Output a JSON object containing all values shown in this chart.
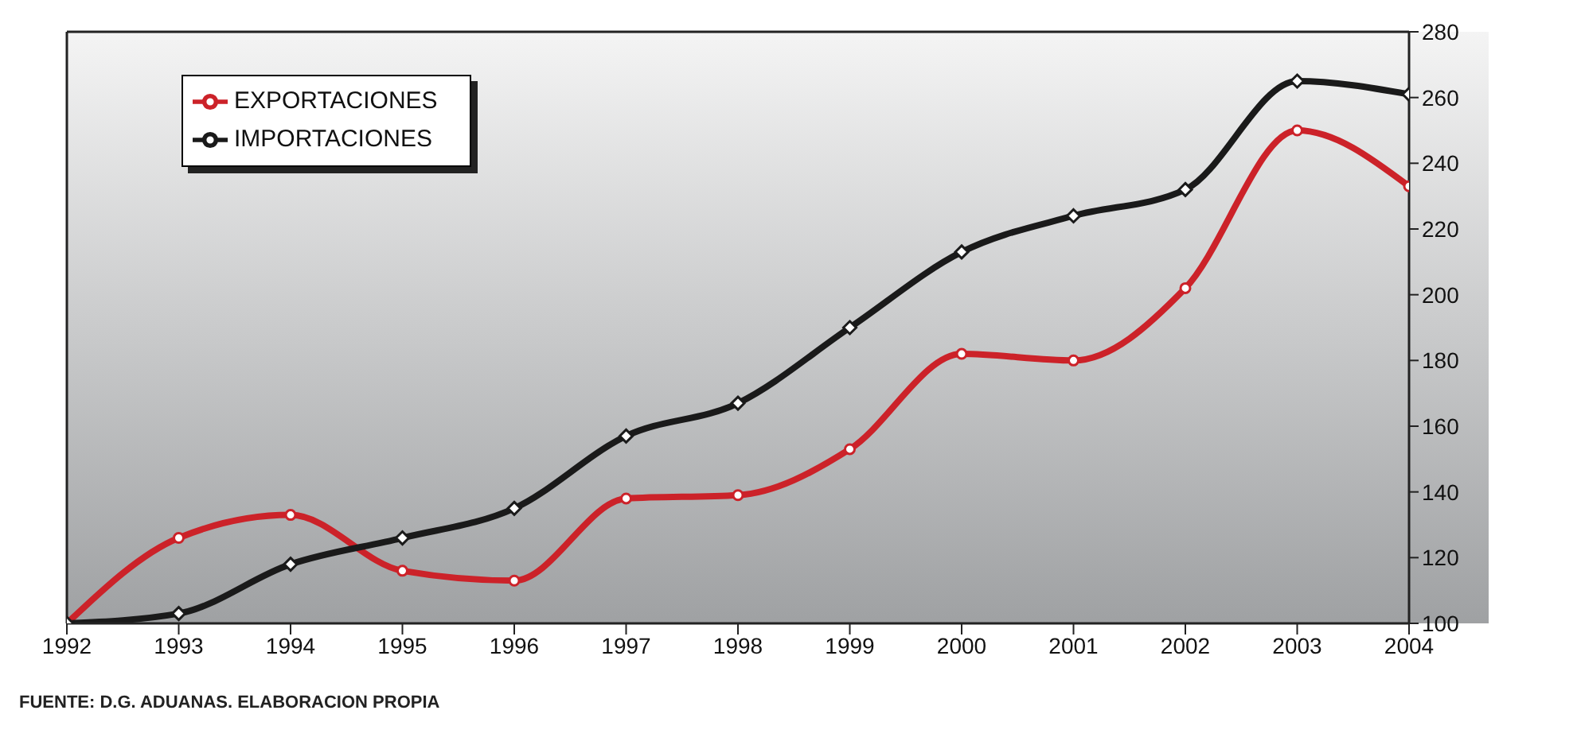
{
  "chart_data": {
    "type": "line",
    "x": [
      1992,
      1993,
      1994,
      1995,
      1996,
      1997,
      1998,
      1999,
      2000,
      2001,
      2002,
      2003,
      2004
    ],
    "series": [
      {
        "name": "EXPORTACIONES",
        "color": "#cc2229",
        "marker": "circle",
        "values": [
          100,
          126,
          133,
          116,
          113,
          138,
          139,
          153,
          182,
          180,
          202,
          250,
          233
        ]
      },
      {
        "name": "IMPORTACIONES",
        "color": "#1a1a1a",
        "marker": "diamond",
        "values": [
          100,
          103,
          118,
          126,
          135,
          157,
          167,
          190,
          213,
          224,
          232,
          265,
          261
        ]
      }
    ],
    "xlim": [
      1992,
      2004
    ],
    "xticks": [
      1992,
      1993,
      1994,
      1995,
      1996,
      1997,
      1998,
      1999,
      2000,
      2001,
      2002,
      2003,
      2004
    ],
    "ylim": [
      100,
      280
    ],
    "yticks": [
      100,
      120,
      140,
      160,
      180,
      200,
      220,
      240,
      260,
      280
    ],
    "grid": false,
    "legend": "top left",
    "line_style": "solid",
    "annotations": [
      "FUENTE: D.G. ADUANAS. ELABORACION PROPIA"
    ]
  }
}
